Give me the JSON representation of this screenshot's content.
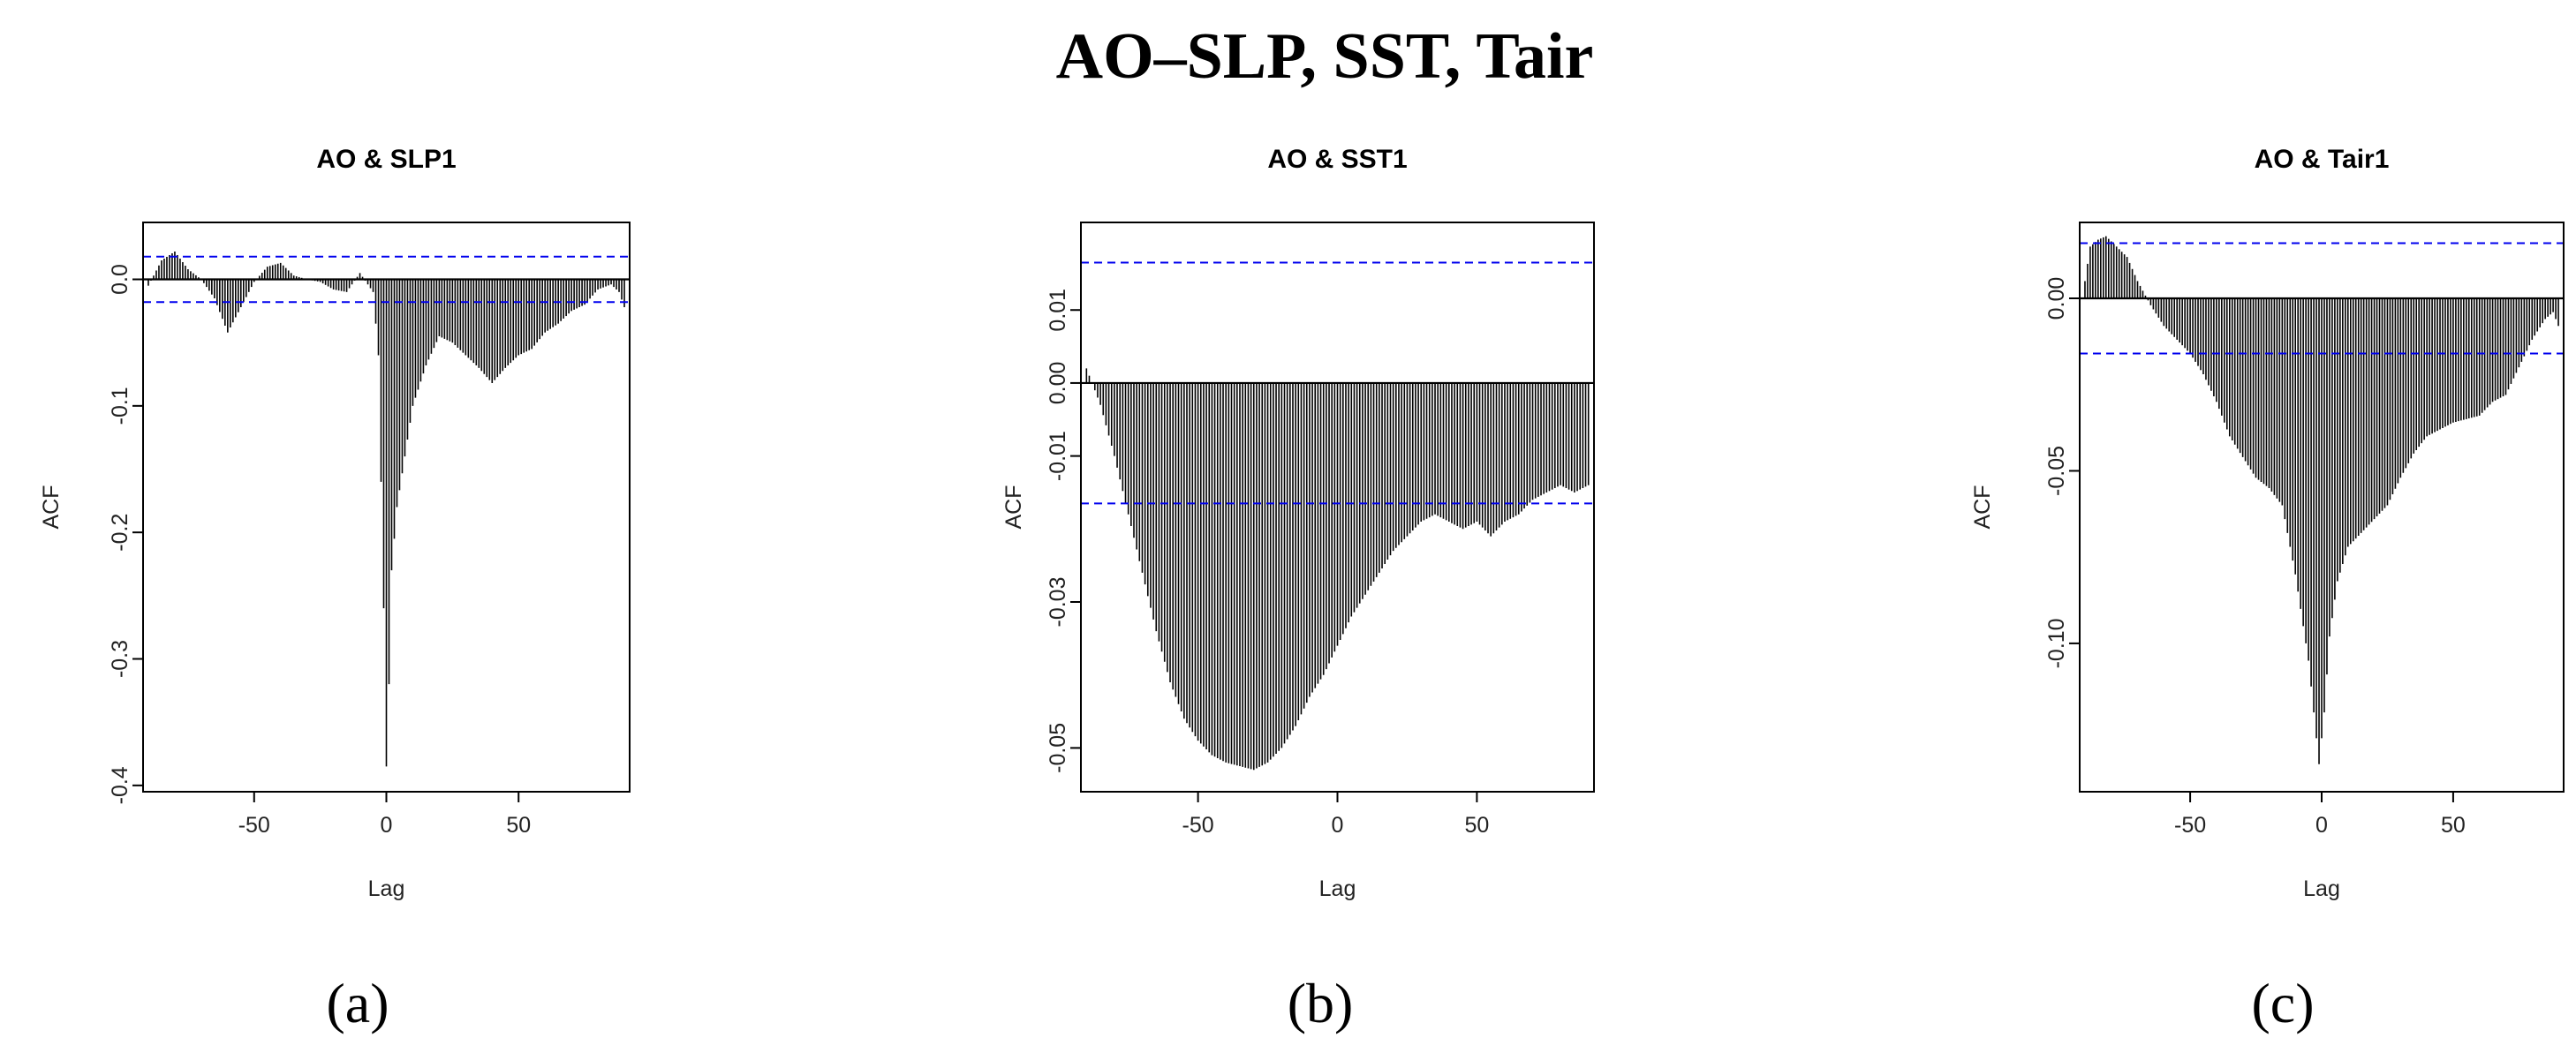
{
  "figure": {
    "title": "AO–SLP, SST, Tair"
  },
  "chart_data": [
    {
      "type": "bar",
      "caption": "(a)",
      "title": "AO & SLP1",
      "xlabel": "Lag",
      "ylabel": "ACF",
      "xlim": [
        -92,
        92
      ],
      "ylim": [
        -0.405,
        0.045
      ],
      "xticks": [
        -50,
        0,
        50
      ],
      "yticks": [
        0.0,
        -0.1,
        -0.2,
        -0.3,
        -0.4
      ],
      "ytick_labels": [
        "0.0",
        "-0.1",
        "-0.2",
        "-0.3",
        "-0.4"
      ],
      "confidence_band": [
        0.018,
        -0.018
      ],
      "grid": false,
      "lag_range": [
        -90,
        90
      ],
      "profile": [
        [
          -90,
          -0.005
        ],
        [
          -85,
          0.015
        ],
        [
          -80,
          0.022
        ],
        [
          -75,
          0.008
        ],
        [
          -70,
          0.0
        ],
        [
          -65,
          -0.015
        ],
        [
          -60,
          -0.042
        ],
        [
          -55,
          -0.022
        ],
        [
          -50,
          -0.002
        ],
        [
          -45,
          0.01
        ],
        [
          -40,
          0.013
        ],
        [
          -35,
          0.003
        ],
        [
          -30,
          0.0
        ],
        [
          -25,
          -0.002
        ],
        [
          -20,
          -0.008
        ],
        [
          -15,
          -0.01
        ],
        [
          -10,
          0.005
        ],
        [
          -5,
          -0.01
        ],
        [
          -3,
          -0.06
        ],
        [
          -2,
          -0.16
        ],
        [
          -1,
          -0.26
        ],
        [
          0,
          -0.385
        ],
        [
          1,
          -0.32
        ],
        [
          2,
          -0.23
        ],
        [
          4,
          -0.18
        ],
        [
          7,
          -0.14
        ],
        [
          10,
          -0.1
        ],
        [
          15,
          -0.068
        ],
        [
          20,
          -0.045
        ],
        [
          25,
          -0.05
        ],
        [
          30,
          -0.06
        ],
        [
          35,
          -0.07
        ],
        [
          40,
          -0.082
        ],
        [
          45,
          -0.07
        ],
        [
          50,
          -0.06
        ],
        [
          55,
          -0.055
        ],
        [
          60,
          -0.042
        ],
        [
          65,
          -0.035
        ],
        [
          70,
          -0.025
        ],
        [
          75,
          -0.02
        ],
        [
          80,
          -0.008
        ],
        [
          85,
          -0.004
        ],
        [
          88,
          -0.01
        ],
        [
          90,
          -0.022
        ]
      ]
    },
    {
      "type": "bar",
      "caption": "(b)",
      "title": "AO & SST1",
      "xlabel": "Lag",
      "ylabel": "ACF",
      "xlim": [
        -92,
        92
      ],
      "ylim": [
        -0.056,
        0.022
      ],
      "xticks": [
        -50,
        0,
        50
      ],
      "yticks": [
        0.01,
        0.0,
        -0.01,
        -0.03,
        -0.05
      ],
      "ytick_labels": [
        "0.01",
        "0.00",
        "-0.01",
        "-0.03",
        "-0.05"
      ],
      "confidence_band": [
        0.0165,
        -0.0165
      ],
      "grid": false,
      "lag_range": [
        -90,
        90
      ],
      "profile": [
        [
          -90,
          0.002
        ],
        [
          -88,
          0.0
        ],
        [
          -85,
          -0.003
        ],
        [
          -80,
          -0.01
        ],
        [
          -75,
          -0.018
        ],
        [
          -70,
          -0.026
        ],
        [
          -65,
          -0.034
        ],
        [
          -60,
          -0.041
        ],
        [
          -55,
          -0.046
        ],
        [
          -50,
          -0.049
        ],
        [
          -45,
          -0.051
        ],
        [
          -40,
          -0.052
        ],
        [
          -35,
          -0.0525
        ],
        [
          -30,
          -0.053
        ],
        [
          -25,
          -0.052
        ],
        [
          -20,
          -0.05
        ],
        [
          -15,
          -0.047
        ],
        [
          -10,
          -0.043
        ],
        [
          -5,
          -0.04
        ],
        [
          0,
          -0.036
        ],
        [
          5,
          -0.032
        ],
        [
          10,
          -0.029
        ],
        [
          15,
          -0.026
        ],
        [
          20,
          -0.023
        ],
        [
          25,
          -0.021
        ],
        [
          30,
          -0.019
        ],
        [
          35,
          -0.018
        ],
        [
          40,
          -0.019
        ],
        [
          45,
          -0.02
        ],
        [
          50,
          -0.019
        ],
        [
          55,
          -0.021
        ],
        [
          60,
          -0.019
        ],
        [
          65,
          -0.018
        ],
        [
          70,
          -0.016
        ],
        [
          75,
          -0.015
        ],
        [
          80,
          -0.014
        ],
        [
          85,
          -0.015
        ],
        [
          90,
          -0.014
        ]
      ]
    },
    {
      "type": "bar",
      "caption": "(c)",
      "title": "AO & Tair1",
      "xlabel": "Lag",
      "ylabel": "ACF",
      "xlim": [
        -92,
        92
      ],
      "ylim": [
        -0.143,
        0.022
      ],
      "xticks": [
        -50,
        0,
        50
      ],
      "yticks": [
        0.0,
        -0.05,
        -0.1
      ],
      "ytick_labels": [
        "0.00",
        "-0.05",
        "-0.10"
      ],
      "confidence_band": [
        0.016,
        -0.016
      ],
      "grid": false,
      "lag_range": [
        -90,
        90
      ],
      "profile": [
        [
          -90,
          0.005
        ],
        [
          -88,
          0.015
        ],
        [
          -85,
          0.017
        ],
        [
          -82,
          0.018
        ],
        [
          -78,
          0.015
        ],
        [
          -74,
          0.012
        ],
        [
          -70,
          0.005
        ],
        [
          -65,
          -0.002
        ],
        [
          -60,
          -0.008
        ],
        [
          -55,
          -0.012
        ],
        [
          -50,
          -0.016
        ],
        [
          -45,
          -0.022
        ],
        [
          -40,
          -0.03
        ],
        [
          -35,
          -0.04
        ],
        [
          -30,
          -0.046
        ],
        [
          -25,
          -0.052
        ],
        [
          -20,
          -0.055
        ],
        [
          -15,
          -0.06
        ],
        [
          -10,
          -0.08
        ],
        [
          -5,
          -0.105
        ],
        [
          -3,
          -0.12
        ],
        [
          -1,
          -0.135
        ],
        [
          1,
          -0.12
        ],
        [
          3,
          -0.098
        ],
        [
          6,
          -0.082
        ],
        [
          10,
          -0.072
        ],
        [
          15,
          -0.068
        ],
        [
          20,
          -0.064
        ],
        [
          25,
          -0.06
        ],
        [
          30,
          -0.052
        ],
        [
          35,
          -0.045
        ],
        [
          40,
          -0.04
        ],
        [
          45,
          -0.038
        ],
        [
          50,
          -0.036
        ],
        [
          55,
          -0.035
        ],
        [
          60,
          -0.034
        ],
        [
          65,
          -0.03
        ],
        [
          70,
          -0.028
        ],
        [
          75,
          -0.02
        ],
        [
          80,
          -0.012
        ],
        [
          85,
          -0.006
        ],
        [
          88,
          -0.004
        ],
        [
          90,
          -0.008
        ]
      ]
    }
  ],
  "colors": {
    "bars": "#000000",
    "frame": "#000000",
    "zero_line": "#000000",
    "confidence_band": "#0000ee"
  }
}
